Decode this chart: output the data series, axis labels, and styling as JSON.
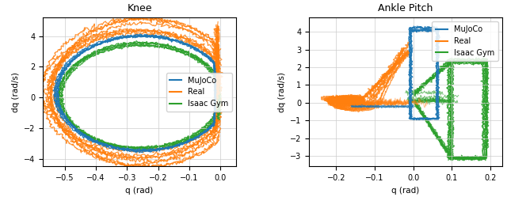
{
  "title_left": "Knee",
  "title_right": "Ankle Pitch",
  "xlabel": "q (rad)",
  "ylabel": "dq (rad/s)",
  "colors": {
    "mujoco": "#1f77b4",
    "real": "#ff7f0e",
    "isaac": "#2ca02c"
  },
  "legend_labels": [
    "MuJoCo",
    "Real",
    "Isaac Gym"
  ],
  "knee_xlim": [
    -0.57,
    0.05
  ],
  "knee_ylim": [
    -4.5,
    5.2
  ],
  "knee_xticks": [
    -0.5,
    -0.4,
    -0.3,
    -0.2,
    -0.1,
    0.0
  ],
  "knee_yticks": [
    -4,
    -2,
    0,
    2,
    4
  ],
  "ankle_xlim": [
    -0.27,
    0.23
  ],
  "ankle_ylim": [
    -3.6,
    4.8
  ],
  "ankle_xticks": [
    -0.2,
    -0.1,
    0.0,
    0.1,
    0.2
  ],
  "ankle_yticks": [
    -3,
    -2,
    -1,
    0,
    1,
    2,
    3,
    4
  ]
}
